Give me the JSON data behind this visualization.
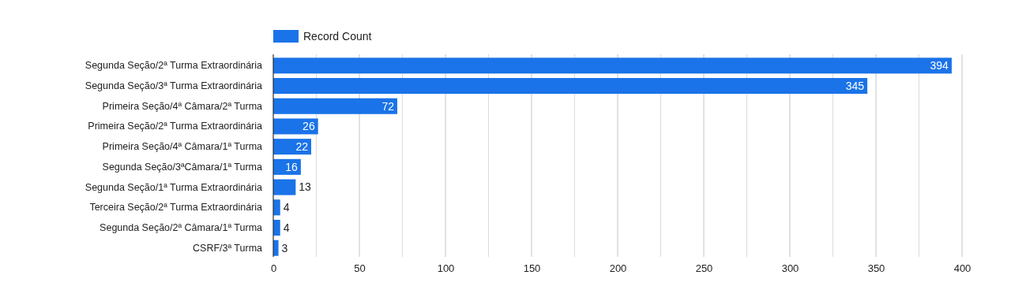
{
  "chart_data": {
    "type": "bar",
    "orientation": "horizontal",
    "categories": [
      "Segunda Seção/2ª Turma Extraordinária",
      "Segunda Seção/3ª Turma Extraordinária",
      "Primeira Seção/4ª Câmara/2ª Turma",
      "Primeira Seção/2ª Turma Extraordinária",
      "Primeira Seção/4ª Câmara/1ª Turma",
      "Segunda Seção/3ªCâmara/1ª Turma",
      "Segunda Seção/1ª Turma Extraordinária",
      "Terceira Seção/2ª Turma Extraordinária",
      "Segunda Seção/2ª Câmara/1ª Turma",
      "CSRF/3ª Turma"
    ],
    "series": [
      {
        "name": "Record Count",
        "color": "#1a73e8",
        "values": [
          394,
          345,
          72,
          26,
          22,
          16,
          13,
          4,
          4,
          3
        ]
      }
    ],
    "xlim": [
      0,
      400
    ],
    "xticks": [
      0,
      {
        "value": 25,
        "label": null
      },
      50,
      {
        "value": 75,
        "label": null
      },
      100,
      {
        "value": 125,
        "label": null
      },
      150,
      {
        "value": 175,
        "label": null
      },
      200,
      {
        "value": 225,
        "label": null
      },
      250,
      {
        "value": 275,
        "label": null
      },
      300,
      {
        "value": 325,
        "label": null
      },
      350,
      {
        "value": 375,
        "label": null
      },
      400
    ],
    "grid": "x",
    "legend": "top left",
    "data_labels": true
  }
}
